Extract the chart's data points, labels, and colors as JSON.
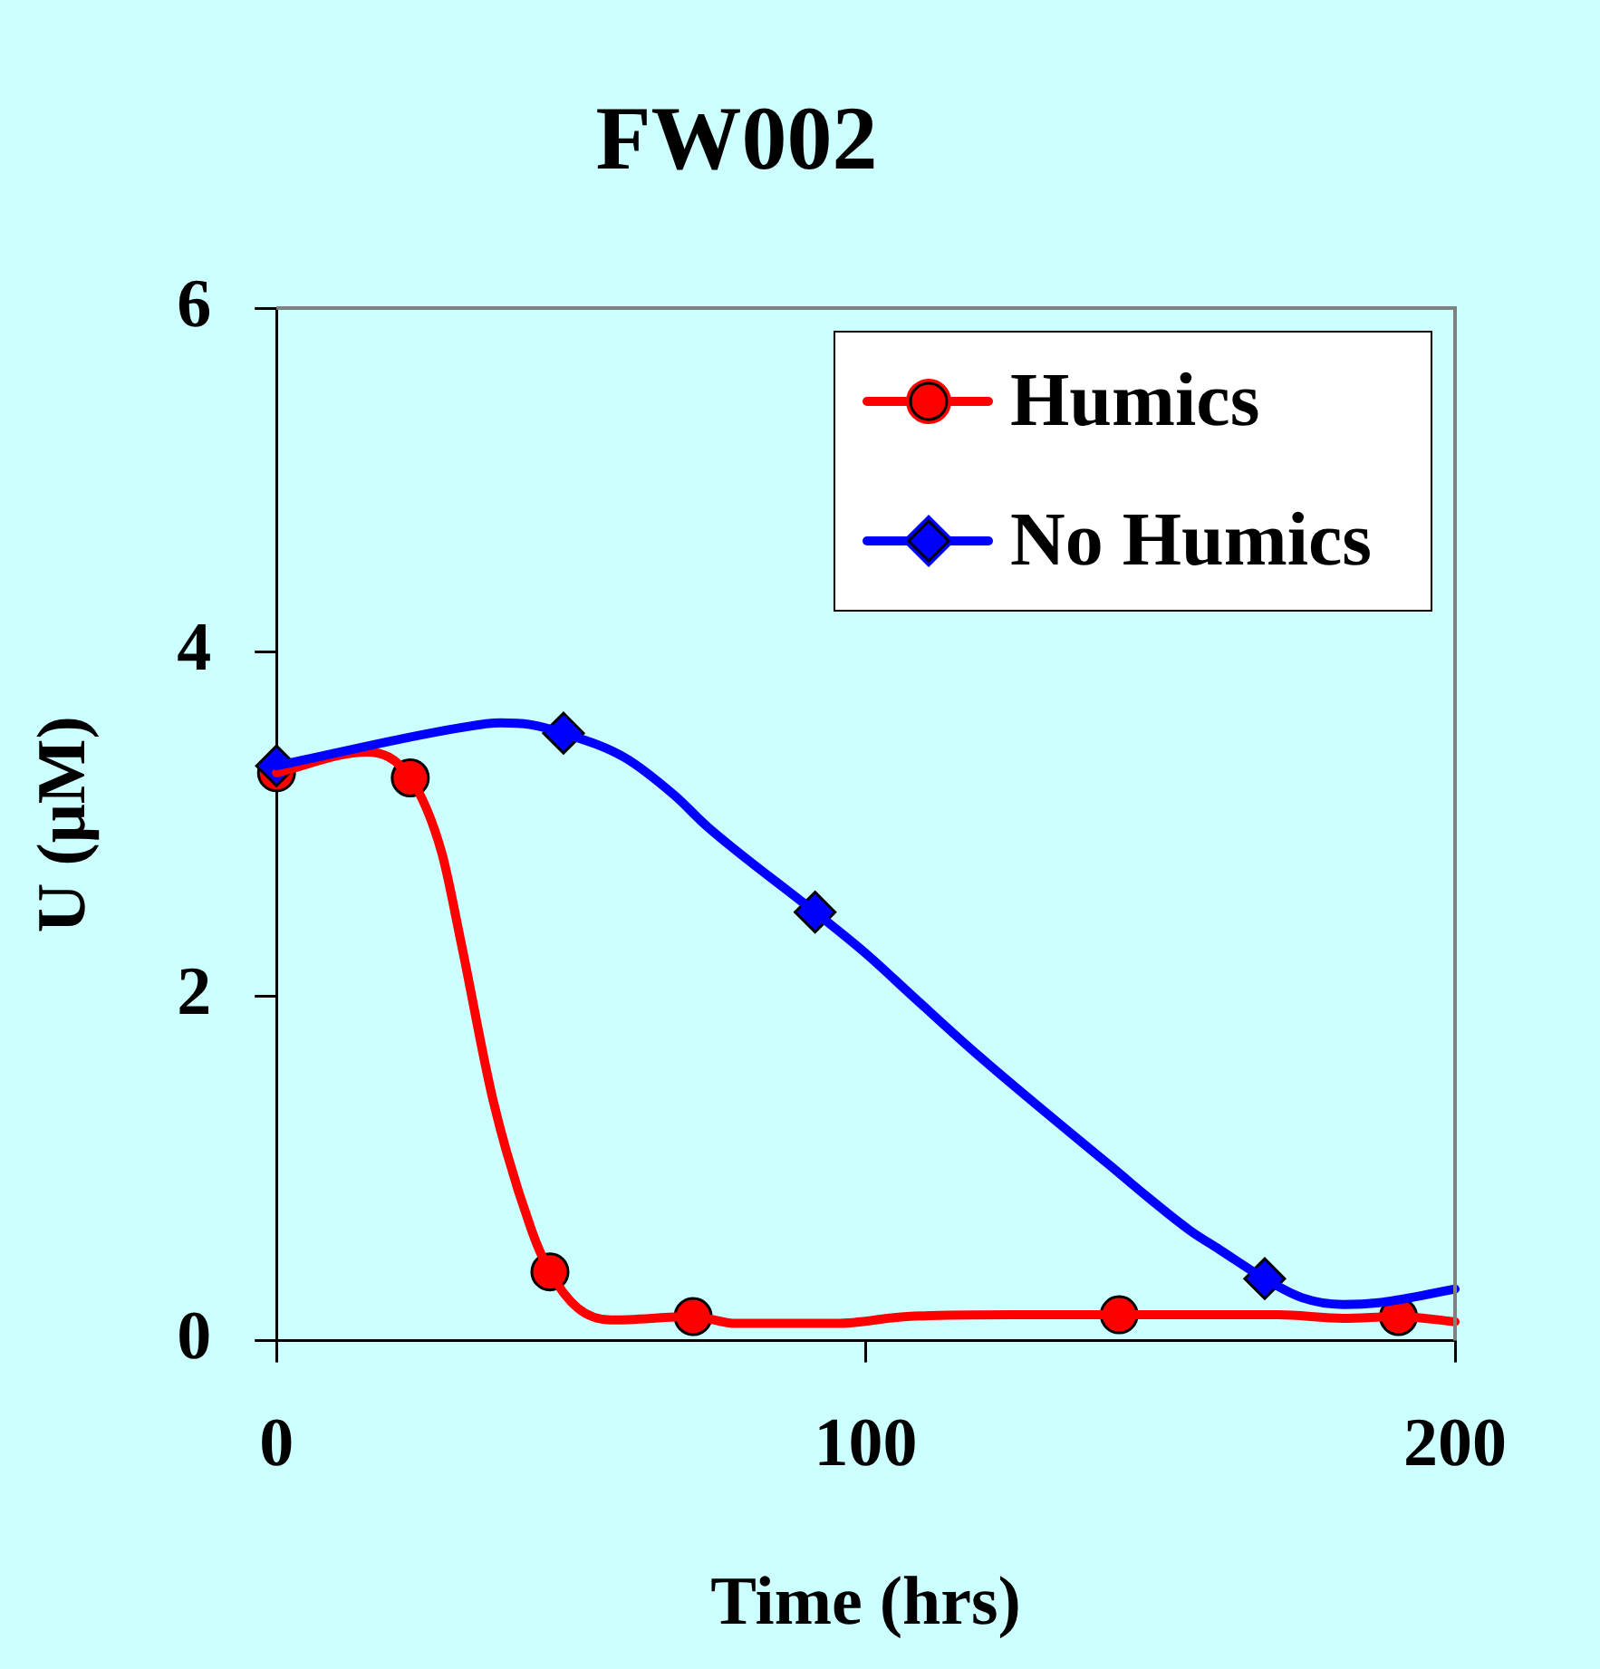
{
  "chart_data": {
    "type": "line",
    "title": "FW002",
    "xlabel": "Time (hrs)",
    "ylabel": "U (μM)",
    "xlim": [
      0,
      200
    ],
    "xticks": [
      0,
      100,
      200
    ],
    "ylim": [
      0,
      6
    ],
    "yticks": [
      0,
      2,
      4,
      6
    ],
    "grid": false,
    "legend": "top right",
    "line_style": "solid",
    "series": [
      {
        "type": "line",
        "color": "#ff0000",
        "marker": "none",
        "x": [
          0,
          15.4,
          22.7,
          28,
          31.4,
          36.8,
          43.3,
          46.4,
          51.1,
          56.8,
          70.7,
          78,
          95,
          107,
          125,
          143,
          170,
          181,
          190.4,
          200
        ],
        "values": [
          3.3,
          3.42,
          3.27,
          2.84,
          2.3,
          1.39,
          0.64,
          0.4,
          0.19,
          0.12,
          0.14,
          0.1,
          0.1,
          0.14,
          0.15,
          0.15,
          0.15,
          0.13,
          0.14,
          0.11
        ]
      },
      {
        "type": "line",
        "color": "#0000ff",
        "marker": "none",
        "x": [
          0,
          31,
          38,
          43,
          48.7,
          59,
          67.5,
          73,
          91.4,
          100,
          108,
          119,
          141,
          155,
          160,
          167.7,
          174,
          181,
          187,
          200
        ],
        "values": [
          3.34,
          3.56,
          3.59,
          3.58,
          3.53,
          3.39,
          3.17,
          2.99,
          2.49,
          2.25,
          2,
          1.66,
          1.03,
          0.64,
          0.53,
          0.36,
          0.25,
          0.21,
          0.22,
          0.3
        ]
      },
      {
        "type": "scatter",
        "name": "Humics",
        "color": "#ff0000",
        "marker": "circle",
        "x": [
          0,
          22.7,
          46.4,
          70.7,
          143,
          190.4
        ],
        "values": [
          3.3,
          3.27,
          0.4,
          0.14,
          0.15,
          0.14
        ]
      },
      {
        "type": "scatter",
        "name": "No Humics",
        "color": "#0000ff",
        "marker": "diamond",
        "x": [
          0,
          48.7,
          91.4,
          167.7
        ],
        "values": [
          3.34,
          3.53,
          2.49,
          0.36
        ]
      }
    ]
  }
}
